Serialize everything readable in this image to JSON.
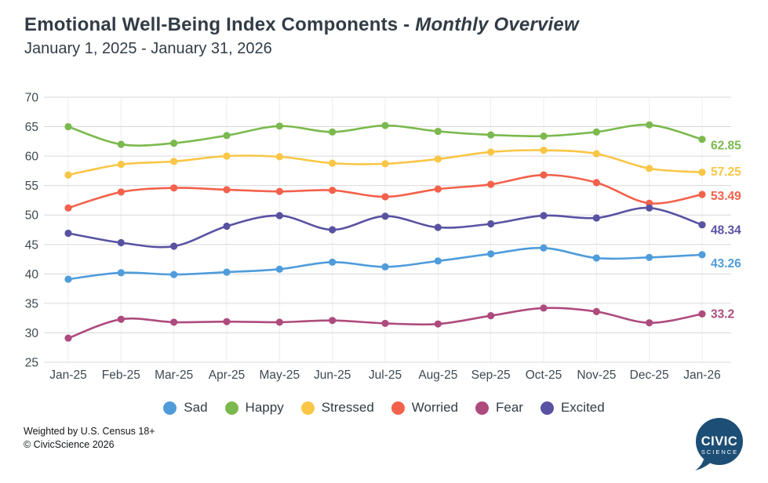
{
  "header": {
    "title_main": "Emotional Well-Being Index Components - ",
    "title_italic": "Monthly Overview",
    "subtitle": "January 1, 2025 - January 31, 2026"
  },
  "chart_data": {
    "type": "line",
    "x_labels": [
      "Jan-25",
      "Feb-25",
      "Mar-25",
      "Apr-25",
      "May-25",
      "Jun-25",
      "Jul-25",
      "Aug-25",
      "Sep-25",
      "Oct-25",
      "Nov-25",
      "Dec-25",
      "Jan-26"
    ],
    "series": [
      {
        "name": "Sad",
        "color": "#4f9cdb",
        "values": [
          39.1,
          40.2,
          39.9,
          40.3,
          40.8,
          42.0,
          41.2,
          42.2,
          43.4,
          44.4,
          42.7,
          42.8,
          43.26
        ],
        "end_label": "43.26"
      },
      {
        "name": "Happy",
        "color": "#7bb94e",
        "values": [
          65.0,
          62.0,
          62.2,
          63.5,
          65.1,
          64.1,
          65.2,
          64.2,
          63.6,
          63.4,
          64.1,
          65.3,
          62.85
        ],
        "end_label": "62.85"
      },
      {
        "name": "Stressed",
        "color": "#f9c646",
        "values": [
          56.8,
          58.6,
          59.1,
          60.0,
          59.9,
          58.8,
          58.7,
          59.5,
          60.7,
          61.0,
          60.4,
          57.9,
          57.25
        ],
        "end_label": "57.25"
      },
      {
        "name": "Worried",
        "color": "#f3614b",
        "values": [
          51.2,
          53.9,
          54.6,
          54.3,
          54.0,
          54.2,
          53.1,
          54.4,
          55.2,
          56.8,
          55.5,
          52.0,
          53.49
        ],
        "end_label": "53.49"
      },
      {
        "name": "Fear",
        "color": "#ae4b7e",
        "values": [
          29.1,
          32.3,
          31.8,
          31.9,
          31.8,
          32.1,
          31.6,
          31.5,
          32.9,
          34.2,
          33.6,
          31.7,
          33.2
        ],
        "end_label": "33.2"
      },
      {
        "name": "Excited",
        "color": "#5952a2",
        "values": [
          46.9,
          45.3,
          44.7,
          48.1,
          49.9,
          47.5,
          49.8,
          47.9,
          48.5,
          49.9,
          49.5,
          51.2,
          48.34
        ],
        "end_label": "48.34"
      }
    ],
    "ylim": [
      25,
      70
    ],
    "yticks": [
      25,
      30,
      35,
      40,
      45,
      50,
      55,
      60,
      65,
      70
    ],
    "grid": true,
    "legend_position": "bottom",
    "title": "Emotional Well-Being Index Components - Monthly Overview",
    "subtitle": "January 1, 2025 - January 31, 2026"
  },
  "footer": {
    "line1": "Weighted by U.S. Census 18+",
    "line2": "© CivicScience 2026"
  },
  "logo": {
    "line1": "CIVIC",
    "line2": "SCIENCE"
  }
}
